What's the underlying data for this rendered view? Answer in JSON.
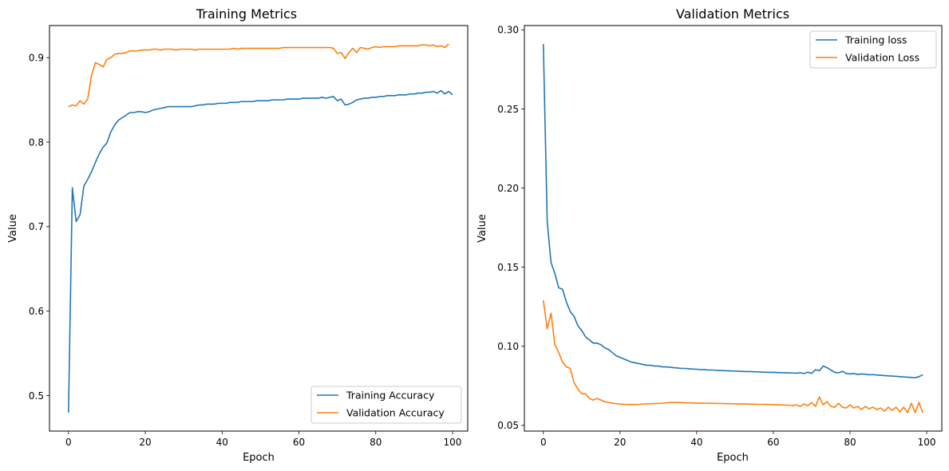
{
  "chart_data": [
    {
      "type": "line",
      "title": "Training Metrics",
      "xlabel": "Epoch",
      "ylabel": "Value",
      "xlim": [
        -4.95,
        103.95
      ],
      "ylim": [
        0.458,
        0.938
      ],
      "xticks": [
        0,
        20,
        40,
        60,
        80,
        100
      ],
      "yticks": [
        0.5,
        0.6,
        0.7,
        0.8,
        0.9
      ],
      "ytick_labels": [
        "0.5",
        "0.6",
        "0.7",
        "0.8",
        "0.9"
      ],
      "grid": false,
      "legend_position": "bottom-right",
      "series": [
        {
          "name": "Training Accuracy",
          "color": "#1f77b4",
          "values": [
            0.48,
            0.746,
            0.706,
            0.714,
            0.748,
            0.756,
            0.765,
            0.776,
            0.786,
            0.794,
            0.799,
            0.812,
            0.82,
            0.826,
            0.829,
            0.832,
            0.835,
            0.835,
            0.836,
            0.836,
            0.835,
            0.836,
            0.838,
            0.839,
            0.84,
            0.841,
            0.842,
            0.842,
            0.842,
            0.842,
            0.842,
            0.842,
            0.842,
            0.843,
            0.844,
            0.844,
            0.845,
            0.845,
            0.845,
            0.846,
            0.846,
            0.846,
            0.847,
            0.847,
            0.847,
            0.848,
            0.848,
            0.848,
            0.848,
            0.849,
            0.849,
            0.849,
            0.849,
            0.85,
            0.85,
            0.85,
            0.85,
            0.851,
            0.851,
            0.851,
            0.851,
            0.852,
            0.852,
            0.852,
            0.852,
            0.852,
            0.853,
            0.852,
            0.853,
            0.854,
            0.849,
            0.851,
            0.844,
            0.845,
            0.847,
            0.85,
            0.851,
            0.852,
            0.852,
            0.853,
            0.853,
            0.854,
            0.854,
            0.855,
            0.855,
            0.855,
            0.856,
            0.856,
            0.856,
            0.857,
            0.857,
            0.858,
            0.858,
            0.859,
            0.859,
            0.86,
            0.858,
            0.861,
            0.857,
            0.86,
            0.856
          ]
        },
        {
          "name": "Validation Accuracy",
          "color": "#ff7f0e",
          "values": [
            0.842,
            0.844,
            0.843,
            0.849,
            0.845,
            0.851,
            0.879,
            0.894,
            0.892,
            0.889,
            0.898,
            0.9,
            0.904,
            0.905,
            0.905,
            0.906,
            0.908,
            0.908,
            0.908,
            0.909,
            0.909,
            0.909,
            0.91,
            0.91,
            0.909,
            0.91,
            0.91,
            0.91,
            0.909,
            0.91,
            0.91,
            0.91,
            0.91,
            0.909,
            0.91,
            0.91,
            0.91,
            0.91,
            0.91,
            0.91,
            0.91,
            0.91,
            0.91,
            0.911,
            0.91,
            0.911,
            0.911,
            0.911,
            0.911,
            0.911,
            0.911,
            0.911,
            0.911,
            0.911,
            0.911,
            0.911,
            0.912,
            0.912,
            0.912,
            0.912,
            0.912,
            0.912,
            0.912,
            0.912,
            0.912,
            0.912,
            0.912,
            0.912,
            0.912,
            0.911,
            0.905,
            0.906,
            0.899,
            0.906,
            0.911,
            0.906,
            0.912,
            0.911,
            0.91,
            0.912,
            0.913,
            0.912,
            0.913,
            0.913,
            0.913,
            0.913,
            0.914,
            0.914,
            0.914,
            0.914,
            0.914,
            0.914,
            0.915,
            0.915,
            0.914,
            0.915,
            0.913,
            0.914,
            0.912,
            0.916
          ]
        }
      ]
    },
    {
      "type": "line",
      "title": "Validation Metrics",
      "xlabel": "Epoch",
      "ylabel": "Value",
      "xlim": [
        -4.95,
        103.95
      ],
      "ylim": [
        0.0464,
        0.3027
      ],
      "xticks": [
        0,
        20,
        40,
        60,
        80,
        100
      ],
      "yticks": [
        0.05,
        0.1,
        0.15,
        0.2,
        0.25,
        0.3
      ],
      "ytick_labels": [
        "0.05",
        "0.10",
        "0.15",
        "0.20",
        "0.25",
        "0.30"
      ],
      "grid": false,
      "legend_position": "top-right",
      "series": [
        {
          "name": "Training loss",
          "color": "#1f77b4",
          "values": [
            0.291,
            0.179,
            0.153,
            0.146,
            0.137,
            0.136,
            0.128,
            0.122,
            0.119,
            0.113,
            0.11,
            0.106,
            0.104,
            0.102,
            0.102,
            0.101,
            0.099,
            0.098,
            0.096,
            0.094,
            0.093,
            0.092,
            0.091,
            0.09,
            0.0895,
            0.089,
            0.0885,
            0.088,
            0.088,
            0.0875,
            0.0875,
            0.087,
            0.087,
            0.0868,
            0.0865,
            0.0863,
            0.086,
            0.086,
            0.0858,
            0.0856,
            0.0855,
            0.0853,
            0.0852,
            0.085,
            0.085,
            0.0848,
            0.0847,
            0.0846,
            0.0845,
            0.0844,
            0.0843,
            0.0842,
            0.0841,
            0.084,
            0.084,
            0.0839,
            0.0838,
            0.0837,
            0.0836,
            0.0835,
            0.0835,
            0.0834,
            0.0833,
            0.0832,
            0.0832,
            0.0831,
            0.083,
            0.0833,
            0.0828,
            0.0836,
            0.0828,
            0.0852,
            0.0845,
            0.0875,
            0.0865,
            0.085,
            0.0835,
            0.0832,
            0.0842,
            0.0828,
            0.0825,
            0.0828,
            0.0822,
            0.0825,
            0.0823,
            0.082,
            0.0821,
            0.0818,
            0.0817,
            0.0815,
            0.0813,
            0.0812,
            0.081,
            0.0808,
            0.0806,
            0.0805,
            0.0803,
            0.0801,
            0.0808,
            0.082
          ]
        },
        {
          "name": "Validation Loss",
          "color": "#ff7f0e",
          "values": [
            0.129,
            0.111,
            0.121,
            0.101,
            0.096,
            0.09,
            0.087,
            0.086,
            0.077,
            0.073,
            0.07,
            0.07,
            0.067,
            0.066,
            0.067,
            0.066,
            0.065,
            0.0645,
            0.064,
            0.0637,
            0.0635,
            0.0633,
            0.0632,
            0.0632,
            0.0632,
            0.0633,
            0.0635,
            0.0636,
            0.0637,
            0.0638,
            0.0639,
            0.064,
            0.0642,
            0.0645,
            0.0645,
            0.0645,
            0.0644,
            0.0643,
            0.0642,
            0.0642,
            0.0641,
            0.0641,
            0.064,
            0.064,
            0.0639,
            0.0639,
            0.0638,
            0.0638,
            0.0637,
            0.0637,
            0.0636,
            0.0636,
            0.0635,
            0.0635,
            0.0634,
            0.0634,
            0.0633,
            0.0633,
            0.0632,
            0.0632,
            0.0631,
            0.063,
            0.063,
            0.0628,
            0.0628,
            0.0625,
            0.063,
            0.062,
            0.0635,
            0.0625,
            0.0645,
            0.062,
            0.068,
            0.063,
            0.065,
            0.062,
            0.0615,
            0.064,
            0.0615,
            0.061,
            0.063,
            0.061,
            0.062,
            0.06,
            0.062,
            0.0605,
            0.0615,
            0.06,
            0.061,
            0.059,
            0.0615,
            0.0595,
            0.0615,
            0.0585,
            0.0615,
            0.058,
            0.064,
            0.058,
            0.0645,
            0.058
          ]
        }
      ]
    }
  ]
}
